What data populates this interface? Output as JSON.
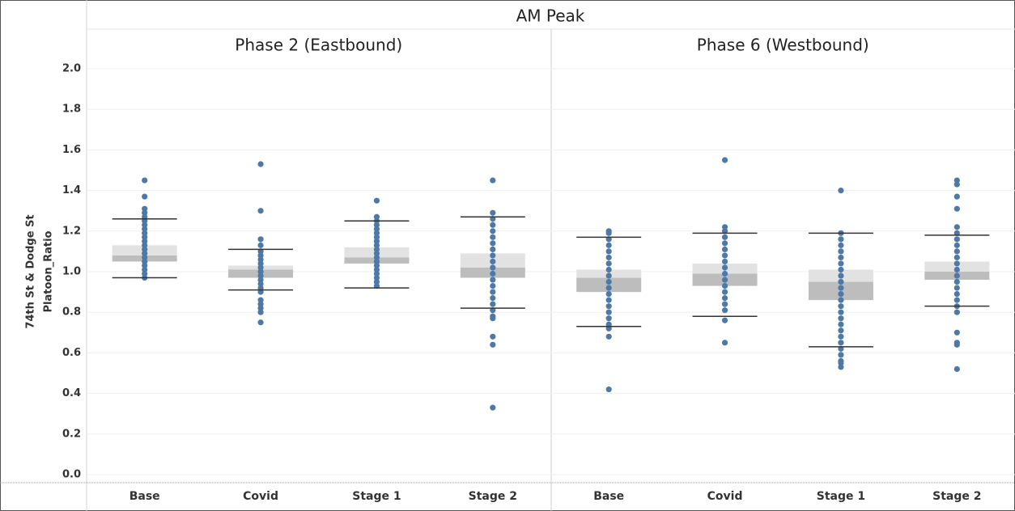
{
  "chart_data": {
    "type": "box",
    "title": "AM Peak",
    "y_label": [
      "74th St & Dodge St",
      "Platoon_Ratio"
    ],
    "ylim": [
      -0.04,
      2.04
    ],
    "yticks": [
      {
        "value": 0,
        "label": "0.0"
      },
      {
        "value": 0.2,
        "label": "0.2"
      },
      {
        "value": 0.4,
        "label": "0.4"
      },
      {
        "value": 0.6,
        "label": "0.6"
      },
      {
        "value": 0.8,
        "label": "0.8"
      },
      {
        "value": 1,
        "label": "1.0"
      },
      {
        "value": 1.2,
        "label": "1.2"
      },
      {
        "value": 1.4,
        "label": "1.4"
      },
      {
        "value": 1.6,
        "label": "1.6"
      },
      {
        "value": 1.8,
        "label": "1.8"
      },
      {
        "value": 2,
        "label": "2.0"
      }
    ],
    "grid": true,
    "point_color": "#4e79a7",
    "box_upper_color": "#e2e2e2",
    "box_lower_color": "#bdbdbd",
    "panels": [
      {
        "title": "Phase 2 (Eastbound)",
        "categories": [
          "Base",
          "Covid",
          "Stage 1",
          "Stage 2"
        ],
        "boxes": [
          {
            "low": 0.97,
            "q1": 1.05,
            "median": 1.08,
            "q3": 1.13,
            "high": 1.26,
            "points": [
              1.45,
              1.37,
              1.31,
              1.29,
              1.27,
              1.25,
              1.23,
              1.21,
              1.19,
              1.17,
              1.15,
              1.13,
              1.11,
              1.09,
              1.07,
              1.05,
              1.03,
              1.01,
              0.99,
              0.97
            ]
          },
          {
            "low": 0.91,
            "q1": 0.97,
            "median": 1.01,
            "q3": 1.03,
            "high": 1.11,
            "points": [
              1.53,
              1.3,
              1.16,
              1.13,
              1.1,
              1.08,
              1.06,
              1.04,
              1.02,
              1.0,
              0.98,
              0.96,
              0.94,
              0.92,
              0.9,
              0.86,
              0.84,
              0.82,
              0.8,
              0.75
            ]
          },
          {
            "low": 0.92,
            "q1": 1.04,
            "median": 1.07,
            "q3": 1.12,
            "high": 1.25,
            "points": [
              1.35,
              1.27,
              1.25,
              1.23,
              1.21,
              1.19,
              1.17,
              1.15,
              1.13,
              1.11,
              1.09,
              1.07,
              1.05,
              1.03,
              1.01,
              0.99,
              0.97,
              0.95,
              0.93
            ]
          },
          {
            "low": 0.82,
            "q1": 0.97,
            "median": 1.02,
            "q3": 1.09,
            "high": 1.27,
            "points": [
              1.45,
              1.29,
              1.26,
              1.23,
              1.2,
              1.17,
              1.14,
              1.11,
              1.08,
              1.05,
              1.02,
              0.99,
              0.96,
              0.93,
              0.9,
              0.87,
              0.84,
              0.81,
              0.78,
              0.77,
              0.68,
              0.64,
              0.33
            ]
          }
        ]
      },
      {
        "title": "Phase 6 (Westbound)",
        "categories": [
          "Base",
          "Covid",
          "Stage 1",
          "Stage 2"
        ],
        "boxes": [
          {
            "low": 0.73,
            "q1": 0.9,
            "median": 0.97,
            "q3": 1.01,
            "high": 1.17,
            "points": [
              1.2,
              1.19,
              1.16,
              1.13,
              1.1,
              1.07,
              1.04,
              1.01,
              0.98,
              0.95,
              0.92,
              0.89,
              0.86,
              0.83,
              0.8,
              0.77,
              0.74,
              0.72,
              0.68,
              0.42
            ]
          },
          {
            "low": 0.78,
            "q1": 0.93,
            "median": 0.99,
            "q3": 1.04,
            "high": 1.19,
            "points": [
              1.55,
              1.22,
              1.2,
              1.17,
              1.14,
              1.11,
              1.08,
              1.05,
              1.02,
              0.99,
              0.96,
              0.93,
              0.9,
              0.87,
              0.84,
              0.81,
              0.76,
              0.65
            ]
          },
          {
            "low": 0.63,
            "q1": 0.86,
            "median": 0.95,
            "q3": 1.01,
            "high": 1.19,
            "points": [
              1.4,
              1.19,
              1.16,
              1.13,
              1.1,
              1.07,
              1.04,
              1.01,
              0.98,
              0.95,
              0.92,
              0.89,
              0.86,
              0.83,
              0.8,
              0.77,
              0.74,
              0.71,
              0.68,
              0.65,
              0.62,
              0.59,
              0.56,
              0.55,
              0.53
            ]
          },
          {
            "low": 0.83,
            "q1": 0.96,
            "median": 1.0,
            "q3": 1.05,
            "high": 1.18,
            "points": [
              1.45,
              1.43,
              1.37,
              1.31,
              1.22,
              1.19,
              1.16,
              1.13,
              1.1,
              1.07,
              1.04,
              1.01,
              0.98,
              0.95,
              0.92,
              0.89,
              0.86,
              0.83,
              0.8,
              0.7,
              0.65,
              0.64,
              0.52
            ]
          }
        ]
      }
    ]
  }
}
